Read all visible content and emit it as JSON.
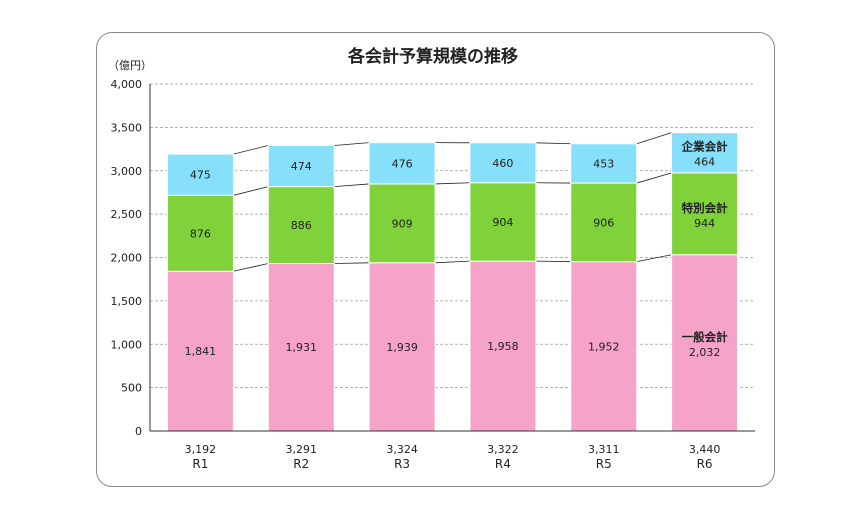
{
  "chart_data": {
    "type": "bar",
    "stacked": true,
    "title": "各会計予算規模の推移",
    "unit_label": "（億円）",
    "categories": [
      "R1",
      "R2",
      "R3",
      "R4",
      "R5",
      "R6"
    ],
    "totals": [
      "3,192",
      "3,291",
      "3,324",
      "3,322",
      "3,311",
      "3,440"
    ],
    "ylim": [
      0,
      4000
    ],
    "yticks": [
      0,
      500,
      1000,
      1500,
      2000,
      2500,
      3000,
      3500,
      4000
    ],
    "ytick_labels": [
      "0",
      "500",
      "1,000",
      "1,500",
      "2,000",
      "2,500",
      "3,000",
      "3,500",
      "4,000"
    ],
    "grid": true,
    "series": [
      {
        "name": "一般会計",
        "color": "#f5a3c9",
        "values": [
          1841,
          1931,
          1939,
          1958,
          1952,
          2032
        ],
        "labels": [
          "1,841",
          "1,931",
          "1,939",
          "1,958",
          "1,952",
          "2,032"
        ]
      },
      {
        "name": "特別会計",
        "color": "#7fd23a",
        "values": [
          876,
          886,
          909,
          904,
          906,
          944
        ],
        "labels": [
          "876",
          "886",
          "909",
          "904",
          "906",
          "944"
        ]
      },
      {
        "name": "企業会計",
        "color": "#87e0fa",
        "values": [
          475,
          474,
          476,
          460,
          453,
          464
        ],
        "labels": [
          "475",
          "474",
          "476",
          "460",
          "453",
          "464"
        ]
      }
    ]
  }
}
